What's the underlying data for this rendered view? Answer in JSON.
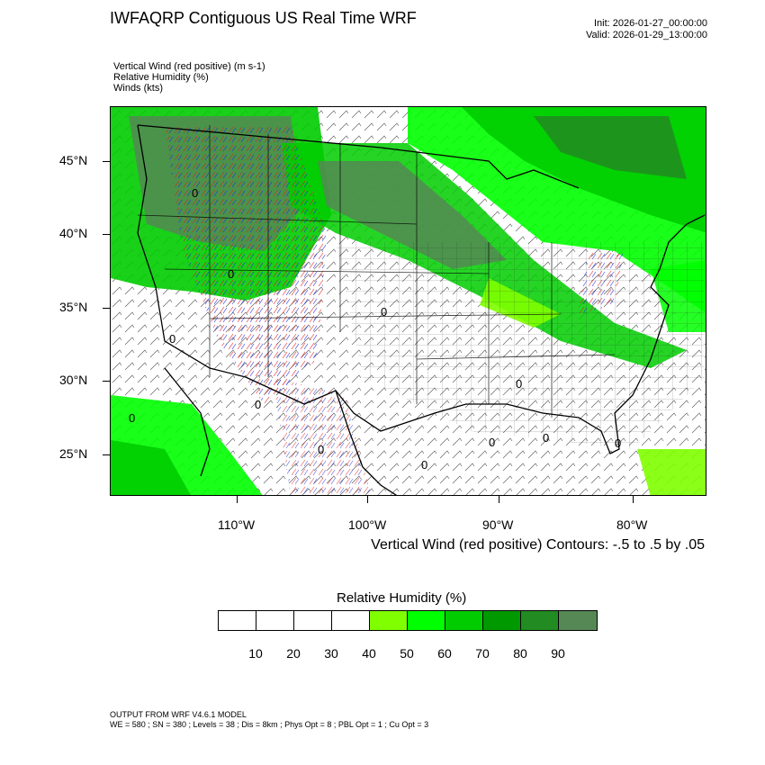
{
  "header": {
    "title": "IWFAQRP Contiguous US Real Time WRF",
    "init": "Init: 2026-01-27_00:00:00",
    "valid": "Valid: 2026-01-29_13:00:00"
  },
  "variables": [
    "Vertical Wind (red positive)   (m s-1)",
    "Relative Humidity   (%)",
    "Winds   (kts)"
  ],
  "axes": {
    "lat_labels": [
      "45°N",
      "40°N",
      "35°N",
      "30°N",
      "25°N"
    ],
    "lon_labels": [
      "110°W",
      "100°W",
      "90°W",
      "80°W"
    ]
  },
  "contour_caption": "Vertical Wind (red positive) Contours: -.5 to .5 by .05",
  "colorbar": {
    "title": "Relative Humidity  (%)",
    "labels": [
      "10",
      "20",
      "30",
      "40",
      "50",
      "60",
      "70",
      "80",
      "90"
    ],
    "colors": [
      "#ffffff",
      "#ffffff",
      "#ffffff",
      "#ffffff",
      "#80ff00",
      "#00ff00",
      "#00cc00",
      "#009900",
      "#228b22",
      "#558855"
    ]
  },
  "footer": {
    "line1": "OUTPUT FROM WRF V4.6.1 MODEL",
    "line2": "WE = 580 ; SN = 380 ; Levels = 38 ; Dis = 8km ; Phys Opt = 8 ; PBL Opt = 1 ; Cu Opt = 3"
  },
  "map": {
    "contour_zero_label": "0"
  }
}
